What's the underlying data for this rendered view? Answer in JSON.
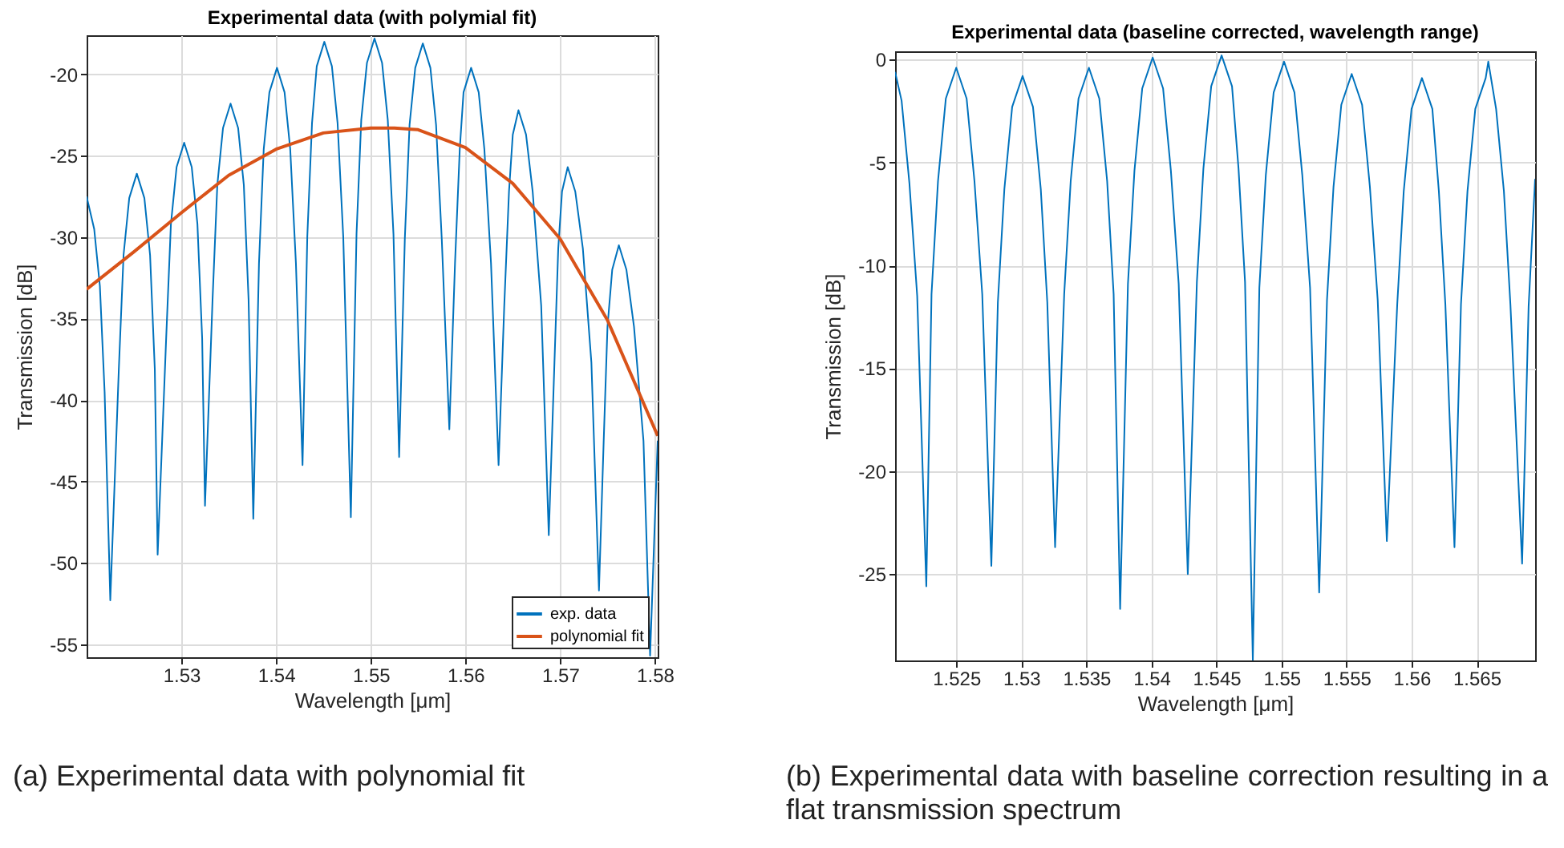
{
  "chart_data": [
    {
      "type": "line",
      "title": "Experimental data (with polymial fit)",
      "xlabel": "Wavelength [μm]",
      "ylabel": "Transmission [dB]",
      "xlim": [
        1.52,
        1.5803
      ],
      "ylim": [
        -55.8,
        -17.6
      ],
      "xticks": [
        1.53,
        1.54,
        1.55,
        1.56,
        1.57,
        1.58
      ],
      "yticks": [
        -55,
        -50,
        -45,
        -40,
        -35,
        -30,
        -25,
        -20
      ],
      "grid": true,
      "legend": "bottom right",
      "series": [
        {
          "name": "exp. data",
          "color": "#0072bd",
          "x": [
            1.52,
            1.5208,
            1.5214,
            1.5219,
            1.5225,
            1.5234,
            1.5239,
            1.5245,
            1.5253,
            1.5261,
            1.5267,
            1.5272,
            1.5275,
            1.5284,
            1.5289,
            1.5295,
            1.5303,
            1.5311,
            1.5317,
            1.5322,
            1.5325,
            1.5333,
            1.5338,
            1.5344,
            1.5352,
            1.536,
            1.5366,
            1.5371,
            1.5376,
            1.5382,
            1.5387,
            1.5393,
            1.5401,
            1.5409,
            1.5415,
            1.5421,
            1.5428,
            1.5433,
            1.5438,
            1.5443,
            1.5451,
            1.5459,
            1.5465,
            1.5471,
            1.5479,
            1.5485,
            1.549,
            1.5496,
            1.5504,
            1.5512,
            1.5518,
            1.5524,
            1.553,
            1.5536,
            1.5541,
            1.5547,
            1.5555,
            1.5563,
            1.5569,
            1.5575,
            1.5583,
            1.5589,
            1.5594,
            1.5598,
            1.5606,
            1.5614,
            1.562,
            1.5627,
            1.5635,
            1.5641,
            1.5646,
            1.565,
            1.5656,
            1.5664,
            1.5671,
            1.568,
            1.5688,
            1.5694,
            1.5698,
            1.5702,
            1.5708,
            1.5716,
            1.5724,
            1.5733,
            1.5741,
            1.5746,
            1.575,
            1.5755,
            1.5762,
            1.577,
            1.5778,
            1.5788,
            1.5795,
            1.5803
          ],
          "values": [
            -27.5,
            -29.5,
            -33,
            -39.5,
            -52.3,
            -38.1,
            -31.1,
            -27.6,
            -26.1,
            -27.6,
            -31.1,
            -38.1,
            -49.5,
            -36.2,
            -29.2,
            -25.7,
            -24.2,
            -25.7,
            -29.2,
            -36.2,
            -46.5,
            -33.8,
            -26.8,
            -23.3,
            -21.8,
            -23.3,
            -26.8,
            -33.8,
            -47.3,
            -31.6,
            -24.6,
            -21.1,
            -19.6,
            -21.1,
            -24.6,
            -31.6,
            -44,
            -30,
            -23,
            -19.5,
            -18,
            -19.5,
            -23,
            -30,
            -47.2,
            -29.8,
            -22.8,
            -19.3,
            -17.8,
            -19.3,
            -22.8,
            -29.8,
            -43.5,
            -30.1,
            -23.1,
            -19.6,
            -18.1,
            -19.6,
            -23.1,
            -30.1,
            -41.8,
            -31.6,
            -24.6,
            -21.1,
            -19.6,
            -21.1,
            -24.6,
            -31.6,
            -44,
            -34.2,
            -27.2,
            -23.7,
            -22.2,
            -23.7,
            -27.2,
            -34.2,
            -48.3,
            -37.7,
            -30.7,
            -27.2,
            -25.7,
            -27.2,
            -30.7,
            -37.7,
            -51.7,
            -42.5,
            -35.5,
            -32,
            -30.5,
            -32,
            -35.5,
            -42.5,
            -55.7,
            -42.5
          ]
        },
        {
          "name": "polynomial fit",
          "color": "#d95319",
          "x": [
            1.52,
            1.525,
            1.53,
            1.535,
            1.54,
            1.545,
            1.55,
            1.5525,
            1.555,
            1.56,
            1.565,
            1.57,
            1.575,
            1.5803
          ],
          "values": [
            -33.2,
            -30.9,
            -28.5,
            -26.2,
            -24.6,
            -23.6,
            -23.3,
            -23.3,
            -23.4,
            -24.5,
            -26.7,
            -30.1,
            -35.1,
            -42.2
          ]
        }
      ],
      "annotations": [
        "(a) Experimental data with polynomial fit"
      ]
    },
    {
      "type": "line",
      "title": "Experimental data (baseline corrected, wavelength range)",
      "xlabel": "Wavelength [μm]",
      "ylabel": "Transmission [dB]",
      "xlim": [
        1.5203,
        1.5695
      ],
      "ylim": [
        -29.2,
        0.4
      ],
      "xticks": [
        1.525,
        1.53,
        1.535,
        1.54,
        1.545,
        1.55,
        1.555,
        1.56,
        1.565
      ],
      "yticks": [
        -25,
        -20,
        -15,
        -10,
        -5,
        0
      ],
      "grid": true,
      "series": [
        {
          "color": "#0072bd",
          "x": [
            1.5203,
            1.5208,
            1.5214,
            1.522,
            1.5227,
            1.5231,
            1.5236,
            1.5242,
            1.525,
            1.5258,
            1.5264,
            1.527,
            1.5277,
            1.5282,
            1.5287,
            1.5293,
            1.5301,
            1.5309,
            1.5315,
            1.532,
            1.5326,
            1.5333,
            1.5338,
            1.5344,
            1.5352,
            1.536,
            1.5366,
            1.5371,
            1.5376,
            1.5382,
            1.5387,
            1.5393,
            1.5401,
            1.5409,
            1.5415,
            1.5421,
            1.5428,
            1.5435,
            1.544,
            1.5446,
            1.5454,
            1.5462,
            1.5467,
            1.5472,
            1.5478,
            1.5483,
            1.5488,
            1.5494,
            1.5502,
            1.551,
            1.5516,
            1.5522,
            1.5529,
            1.5535,
            1.554,
            1.5546,
            1.5554,
            1.5562,
            1.5568,
            1.5574,
            1.5581,
            1.5589,
            1.5594,
            1.56,
            1.5608,
            1.5616,
            1.5621,
            1.5626,
            1.5633,
            1.5638,
            1.5643,
            1.5649,
            1.5657,
            1.5659,
            1.5665,
            1.5671,
            1.5676,
            1.5685,
            1.569,
            1.5695
          ],
          "values": [
            -0.6,
            -2,
            -6,
            -11.5,
            -25.6,
            -11.4,
            -5.9,
            -1.9,
            -0.4,
            -1.9,
            -5.9,
            -11.4,
            -24.6,
            -11.8,
            -6.3,
            -2.3,
            -0.8,
            -2.3,
            -6.3,
            -11.8,
            -23.7,
            -11.4,
            -5.9,
            -1.9,
            -0.4,
            -1.9,
            -5.9,
            -11.4,
            -26.7,
            -10.9,
            -5.4,
            -1.4,
            0.1,
            -1.4,
            -5.4,
            -10.9,
            -25,
            -10.8,
            -5.3,
            -1.3,
            0.2,
            -1.3,
            -5.3,
            -10.8,
            -29.2,
            -11.1,
            -5.6,
            -1.6,
            -0.1,
            -1.6,
            -5.6,
            -11.1,
            -25.9,
            -11.7,
            -6.2,
            -2.2,
            -0.7,
            -2.2,
            -6.2,
            -11.7,
            -23.4,
            -11.9,
            -6.4,
            -2.4,
            -0.9,
            -2.4,
            -6.4,
            -11.9,
            -23.7,
            -11.9,
            -6.4,
            -2.4,
            -0.9,
            -0.1,
            -2.4,
            -6.4,
            -11.9,
            -24.5,
            -12,
            -5.8
          ]
        }
      ],
      "annotations": [
        "(b) Experimental data with baseline correction resulting in a flat transmission spectrum"
      ]
    }
  ]
}
